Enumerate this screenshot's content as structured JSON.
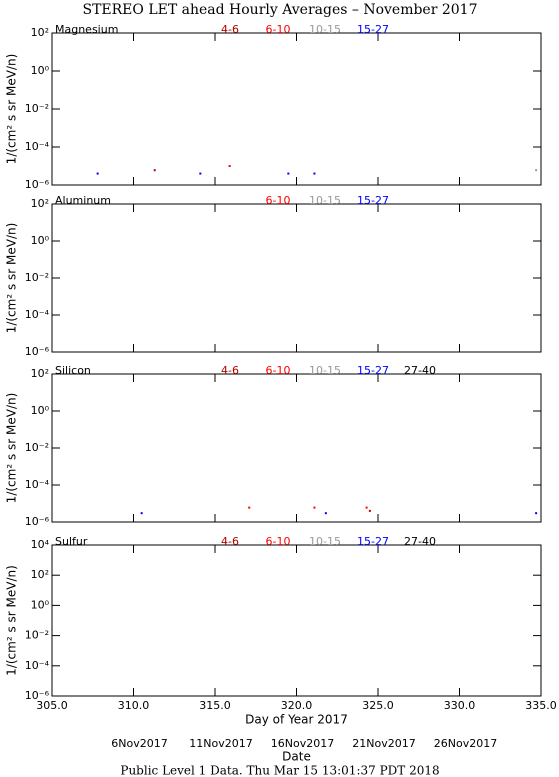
{
  "chart_data": [
    {
      "type": "scatter",
      "title": "STEREO LET ahead Hourly Averages – November 2017",
      "label": "Magnesium",
      "ylabel": "1/(cm² s sr MeV/n)",
      "log_y": true,
      "xlim": [
        305,
        335
      ],
      "ylim": [
        1e-06,
        100
      ],
      "xticks": [
        {
          "value": 305,
          "label": "305.0"
        },
        {
          "value": 310,
          "label": "310.0"
        },
        {
          "value": 315,
          "label": "315.0"
        },
        {
          "value": 320,
          "label": "320.0"
        },
        {
          "value": 325,
          "label": "325.0"
        },
        {
          "value": 330,
          "label": "330.0"
        },
        {
          "value": 335,
          "label": "335.0"
        }
      ],
      "yticks": [
        {
          "value": 100,
          "label": "10²"
        },
        {
          "value": 1,
          "label": "10⁰"
        },
        {
          "value": 0.01,
          "label": "10⁻²"
        },
        {
          "value": 0.0001,
          "label": "10⁻⁴"
        },
        {
          "value": 1e-06,
          "label": "10⁻⁶"
        }
      ],
      "series": [
        {
          "name": "4-6",
          "color": "#b00000",
          "x": [
            311.3
          ],
          "values": [
            6e-06
          ]
        },
        {
          "name": "6-10",
          "color": "#ff0000",
          "x": [
            315.9
          ],
          "values": [
            1e-05
          ]
        },
        {
          "name": "10-15",
          "color": "#999999",
          "x": [
            334.7
          ],
          "values": [
            6e-06
          ]
        },
        {
          "name": "15-27",
          "color": "#0000ff",
          "x": [
            307.8,
            314.1,
            319.5,
            321.1
          ],
          "values": [
            4e-06,
            4e-06,
            4e-06,
            4e-06
          ]
        }
      ]
    },
    {
      "type": "scatter",
      "label": "Aluminum",
      "ylabel": "1/(cm² s sr MeV/n)",
      "log_y": true,
      "xlim": [
        305,
        335
      ],
      "ylim": [
        1e-06,
        100
      ],
      "yticks": [
        {
          "value": 100,
          "label": "10²"
        },
        {
          "value": 1,
          "label": "10⁰"
        },
        {
          "value": 0.01,
          "label": "10⁻²"
        },
        {
          "value": 0.0001,
          "label": "10⁻⁴"
        },
        {
          "value": 1e-06,
          "label": "10⁻⁶"
        }
      ],
      "series": [
        {
          "name": "6-10",
          "color": "#ff0000",
          "x": [],
          "values": []
        },
        {
          "name": "10-15",
          "color": "#999999",
          "x": [],
          "values": []
        },
        {
          "name": "15-27",
          "color": "#0000ff",
          "x": [],
          "values": []
        }
      ]
    },
    {
      "type": "scatter",
      "label": "Silicon",
      "ylabel": "1/(cm² s sr MeV/n)",
      "log_y": true,
      "xlim": [
        305,
        335
      ],
      "ylim": [
        1e-06,
        100
      ],
      "yticks": [
        {
          "value": 100,
          "label": "10²"
        },
        {
          "value": 1,
          "label": "10⁰"
        },
        {
          "value": 0.01,
          "label": "10⁻²"
        },
        {
          "value": 0.0001,
          "label": "10⁻⁴"
        },
        {
          "value": 1e-06,
          "label": "10⁻⁶"
        }
      ],
      "series": [
        {
          "name": "4-6",
          "color": "#b00000",
          "x": [
            324.5
          ],
          "values": [
            4e-06
          ]
        },
        {
          "name": "6-10",
          "color": "#ff0000",
          "x": [
            317.1,
            321.1,
            324.3
          ],
          "values": [
            6e-06,
            6e-06,
            6e-06
          ]
        },
        {
          "name": "10-15",
          "color": "#999999",
          "x": [],
          "values": []
        },
        {
          "name": "15-27",
          "color": "#0000ff",
          "x": [
            310.5,
            321.8,
            334.7
          ],
          "values": [
            3e-06,
            3e-06,
            3e-06
          ]
        },
        {
          "name": "27-40",
          "color": "#000000",
          "x": [],
          "values": []
        }
      ]
    },
    {
      "type": "scatter",
      "label": "Sulfur",
      "ylabel": "1/(cm² s sr MeV/n)",
      "log_y": true,
      "xlim": [
        305,
        335
      ],
      "ylim": [
        1e-06,
        10000
      ],
      "xlabel": "Day of Year 2017",
      "date_label": "Date",
      "xticks": [
        {
          "value": 305,
          "label": "305.0"
        },
        {
          "value": 310,
          "label": "310.0"
        },
        {
          "value": 315,
          "label": "315.0"
        },
        {
          "value": 320,
          "label": "320.0"
        },
        {
          "value": 325,
          "label": "325.0"
        },
        {
          "value": 330,
          "label": "330.0"
        },
        {
          "value": 335,
          "label": "335.0"
        }
      ],
      "date_ticks": [
        {
          "value": 310,
          "label": "6Nov2017"
        },
        {
          "value": 315,
          "label": "11Nov2017"
        },
        {
          "value": 320,
          "label": "16Nov2017"
        },
        {
          "value": 325,
          "label": "21Nov2017"
        },
        {
          "value": 330,
          "label": "26Nov2017"
        }
      ],
      "yticks": [
        {
          "value": 10000,
          "label": "10⁴"
        },
        {
          "value": 100,
          "label": "10²"
        },
        {
          "value": 1,
          "label": "10⁰"
        },
        {
          "value": 0.01,
          "label": "10⁻²"
        },
        {
          "value": 0.0001,
          "label": "10⁻⁴"
        },
        {
          "value": 1e-06,
          "label": "10⁻⁶"
        }
      ],
      "series": [
        {
          "name": "4-6",
          "color": "#b00000",
          "x": [],
          "values": []
        },
        {
          "name": "6-10",
          "color": "#ff0000",
          "x": [],
          "values": []
        },
        {
          "name": "10-15",
          "color": "#999999",
          "x": [],
          "values": []
        },
        {
          "name": "15-27",
          "color": "#0000ff",
          "x": [],
          "values": []
        },
        {
          "name": "27-40",
          "color": "#000000",
          "x": [],
          "values": []
        }
      ]
    }
  ],
  "footer": "Public Level 1 Data. Thu Mar 15 13:01:37 PDT 2018"
}
